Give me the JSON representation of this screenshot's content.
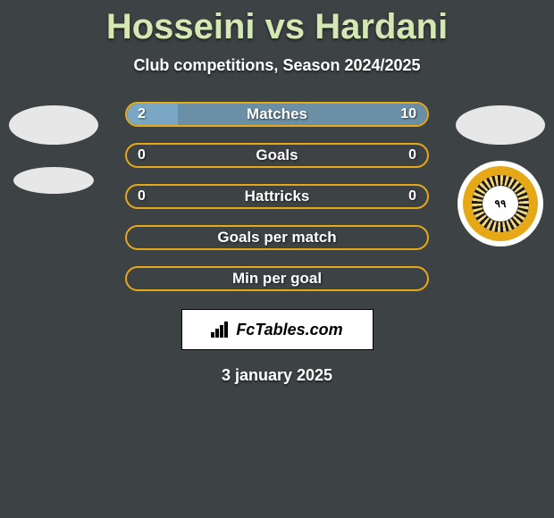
{
  "title": "Hosseini vs Hardani",
  "subtitle": "Club competitions, Season 2024/2025",
  "date": "3 january 2025",
  "brand": "FcTables.com",
  "colors": {
    "background": "#3d4345",
    "title_color": "#d3e8b2",
    "bar_border": "#e6a817",
    "left_fill": "#7aa8c4",
    "right_fill": "#6b8fa5",
    "badge_outer": "#e6a817",
    "badge_mid": "#1a1a1a"
  },
  "bars": [
    {
      "label": "Matches",
      "left": "2",
      "right": "10",
      "left_pct": 17,
      "right_pct": 83,
      "has_fill": true
    },
    {
      "label": "Goals",
      "left": "0",
      "right": "0",
      "left_pct": 0,
      "right_pct": 0,
      "has_fill": false
    },
    {
      "label": "Hattricks",
      "left": "0",
      "right": "0",
      "left_pct": 0,
      "right_pct": 0,
      "has_fill": false
    },
    {
      "label": "Goals per match",
      "left": "",
      "right": "",
      "left_pct": 0,
      "right_pct": 0,
      "has_fill": false
    },
    {
      "label": "Min per goal",
      "left": "",
      "right": "",
      "left_pct": 0,
      "right_pct": 0,
      "has_fill": false
    }
  ]
}
